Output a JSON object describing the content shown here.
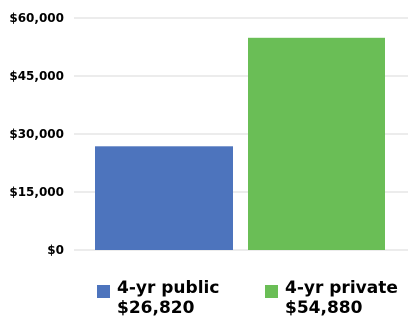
{
  "chart_data": {
    "type": "bar",
    "categories": [
      "4-yr public",
      "4-yr private"
    ],
    "values": [
      26820,
      54880
    ],
    "colors": [
      "#4d74bd",
      "#6abe56"
    ],
    "ylim": [
      0,
      60000
    ],
    "yticks": [
      0,
      15000,
      30000,
      45000,
      60000
    ],
    "ytick_labels": [
      "$0",
      "$15,000",
      "$30,000",
      "$45,000",
      "$60,000"
    ],
    "grid": true,
    "legend_position": "bottom"
  },
  "legend": {
    "items": [
      {
        "label": "4-yr public",
        "value": "$26,820",
        "color": "#4d74bd"
      },
      {
        "label": "4-yr private",
        "value": "$54,880",
        "color": "#6abe56"
      }
    ]
  }
}
